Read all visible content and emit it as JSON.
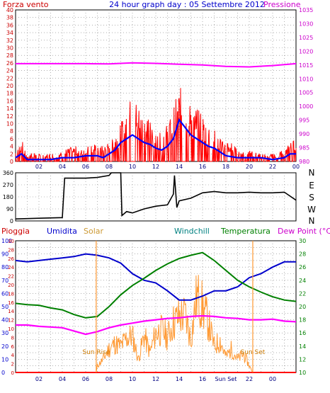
{
  "header": {
    "left_label": "Forza vento",
    "title": "24 hour graph day : 05 Settembre 2012",
    "right_label": "Pressione"
  },
  "bottom_header": {
    "pioggia": "Pioggia",
    "umidita": "Umidita",
    "solar": "Solar",
    "windchill": "Windchill",
    "temperatura": "Temperatura",
    "dewpoint": "Dew Point (°C)"
  },
  "colors": {
    "wind": "#ff0000",
    "wind_avg": "#0000ff",
    "pressure": "#ff00ff",
    "direction": "#000000",
    "humidity": "#0000cc",
    "temperature": "#008000",
    "dewpoint": "#ff00ff",
    "solar": "#ff9933",
    "rain": "#ff0000",
    "windchill": "#0000ff",
    "grid": "#808080",
    "axis_left_top": "#cc0000",
    "axis_right_top": "#cc00cc",
    "axis_left_bottom": "#0000cc",
    "axis_left2_bottom": "#cc0000",
    "axis_right_bottom": "#008000"
  },
  "x_ticks": [
    "02",
    "04",
    "06",
    "08",
    "10",
    "12",
    "14",
    "16",
    "18",
    "20",
    "22",
    "00"
  ],
  "bottom_x_ticks": [
    "02",
    "04",
    "06",
    "08",
    "10",
    "12",
    "14",
    "16",
    "Sun Set",
    "22",
    "00"
  ],
  "chart_data": [
    {
      "type": "line",
      "name": "wind",
      "y_left_ticks": [
        "0",
        "2",
        "4",
        "6",
        "8",
        "10",
        "12",
        "14",
        "16",
        "18",
        "20",
        "22",
        "24",
        "26",
        "28",
        "30",
        "32",
        "34",
        "36",
        "38",
        "40"
      ],
      "y_right_ticks": [
        "980",
        "985",
        "990",
        "995",
        "1000",
        "1005",
        "1010",
        "1015",
        "1020",
        "1025",
        "1030",
        "1035"
      ],
      "ylim_left": [
        0,
        40
      ],
      "ylim_right": [
        980,
        1035
      ],
      "xlim": [
        0,
        24
      ],
      "wind_gust_envelope": [
        [
          0,
          3
        ],
        [
          0.5,
          6
        ],
        [
          1,
          2
        ],
        [
          1.5,
          3
        ],
        [
          2,
          2
        ],
        [
          3,
          2
        ],
        [
          4,
          3
        ],
        [
          5,
          4
        ],
        [
          6,
          4
        ],
        [
          7,
          5
        ],
        [
          7.5,
          4
        ],
        [
          8,
          6
        ],
        [
          8.5,
          7
        ],
        [
          9,
          10
        ],
        [
          9.5,
          14
        ],
        [
          10,
          18
        ],
        [
          10.5,
          15
        ],
        [
          11,
          12
        ],
        [
          11.5,
          13
        ],
        [
          12,
          9
        ],
        [
          12.5,
          8
        ],
        [
          13,
          10
        ],
        [
          13.5,
          14
        ],
        [
          14,
          20
        ],
        [
          14.5,
          18
        ],
        [
          15,
          16
        ],
        [
          15.5,
          14
        ],
        [
          16,
          13
        ],
        [
          16.5,
          10
        ],
        [
          17,
          9
        ],
        [
          17.5,
          7
        ],
        [
          18,
          6
        ],
        [
          18.5,
          5
        ],
        [
          19,
          3
        ],
        [
          20,
          3
        ],
        [
          21,
          2
        ],
        [
          22,
          2
        ],
        [
          23,
          3
        ],
        [
          23.5,
          5
        ],
        [
          24,
          7
        ]
      ],
      "wind_avg": [
        [
          0,
          1
        ],
        [
          0.5,
          2
        ],
        [
          1,
          0.5
        ],
        [
          2,
          0.5
        ],
        [
          3,
          0.5
        ],
        [
          4,
          1
        ],
        [
          5,
          1
        ],
        [
          6,
          1.5
        ],
        [
          7,
          1.5
        ],
        [
          7.5,
          1
        ],
        [
          8,
          2
        ],
        [
          8.5,
          3
        ],
        [
          9,
          5
        ],
        [
          9.5,
          6
        ],
        [
          10,
          7
        ],
        [
          10.5,
          6
        ],
        [
          11,
          5
        ],
        [
          11.5,
          4.5
        ],
        [
          12,
          3.5
        ],
        [
          12.5,
          3
        ],
        [
          13,
          4
        ],
        [
          13.5,
          6
        ],
        [
          14,
          11
        ],
        [
          14.5,
          9
        ],
        [
          15,
          7
        ],
        [
          15.5,
          6
        ],
        [
          16,
          5
        ],
        [
          16.5,
          4
        ],
        [
          17,
          3.5
        ],
        [
          17.5,
          2.5
        ],
        [
          18,
          1.5
        ],
        [
          19,
          1
        ],
        [
          20,
          1
        ],
        [
          21,
          1
        ],
        [
          22,
          0.5
        ],
        [
          23,
          1
        ],
        [
          23.5,
          2
        ],
        [
          24,
          2
        ]
      ],
      "pressure": [
        [
          0,
          1015.5
        ],
        [
          2,
          1015.5
        ],
        [
          4,
          1015.5
        ],
        [
          6,
          1015.5
        ],
        [
          8,
          1015.4
        ],
        [
          10,
          1015.8
        ],
        [
          12,
          1015.6
        ],
        [
          14,
          1015.3
        ],
        [
          16,
          1015.0
        ],
        [
          18,
          1014.5
        ],
        [
          20,
          1014.3
        ],
        [
          22,
          1014.8
        ],
        [
          24,
          1015.5
        ]
      ]
    },
    {
      "type": "line",
      "name": "direction",
      "y_ticks": [
        "0",
        "90",
        "180",
        "270",
        "360"
      ],
      "compass": [
        "N",
        "W",
        "S",
        "E",
        "N"
      ],
      "ylim": [
        0,
        360
      ],
      "xlim": [
        0,
        24
      ],
      "values": [
        [
          0,
          15
        ],
        [
          2,
          20
        ],
        [
          4,
          25
        ],
        [
          4.2,
          320
        ],
        [
          5,
          320
        ],
        [
          6,
          320
        ],
        [
          7,
          325
        ],
        [
          8,
          340
        ],
        [
          8.2,
          360
        ],
        [
          9,
          360
        ],
        [
          9.1,
          40
        ],
        [
          9.5,
          70
        ],
        [
          10,
          60
        ],
        [
          11,
          90
        ],
        [
          12,
          110
        ],
        [
          13,
          120
        ],
        [
          13.5,
          200
        ],
        [
          13.6,
          340
        ],
        [
          13.8,
          100
        ],
        [
          14,
          150
        ],
        [
          15,
          170
        ],
        [
          16,
          210
        ],
        [
          17,
          220
        ],
        [
          18,
          210
        ],
        [
          19,
          210
        ],
        [
          20,
          215
        ],
        [
          21,
          210
        ],
        [
          22,
          210
        ],
        [
          23,
          215
        ],
        [
          24,
          155
        ]
      ]
    },
    {
      "type": "line",
      "name": "temperature",
      "y_left_ticks": [
        "0",
        "10",
        "20",
        "30",
        "40",
        "50",
        "60",
        "70",
        "80",
        "90",
        "100"
      ],
      "y_left2_ticks": [
        "0",
        "2",
        "4",
        "6",
        "8",
        "10",
        "12",
        "14",
        "16",
        "18",
        "20",
        "22",
        "24",
        "26",
        "28",
        "30"
      ],
      "y_right_ticks": [
        "10",
        "12",
        "14",
        "16",
        "18",
        "20",
        "22",
        "24",
        "26",
        "28",
        "30"
      ],
      "ylim_humidity": [
        0,
        100
      ],
      "ylim_temp": [
        10,
        30
      ],
      "xlim": [
        0,
        24
      ],
      "humidity": [
        [
          0,
          85
        ],
        [
          1,
          84
        ],
        [
          2,
          85
        ],
        [
          3,
          86
        ],
        [
          4,
          87
        ],
        [
          5,
          88
        ],
        [
          6,
          90
        ],
        [
          7,
          89
        ],
        [
          8,
          87
        ],
        [
          9,
          83
        ],
        [
          10,
          75
        ],
        [
          11,
          70
        ],
        [
          12,
          68
        ],
        [
          13,
          62
        ],
        [
          14,
          55
        ],
        [
          15,
          55
        ],
        [
          16,
          58
        ],
        [
          17,
          62
        ],
        [
          18,
          62
        ],
        [
          19,
          65
        ],
        [
          20,
          72
        ],
        [
          21,
          75
        ],
        [
          22,
          80
        ],
        [
          23,
          84
        ],
        [
          24,
          84
        ]
      ],
      "temperature": [
        [
          0,
          20.5
        ],
        [
          1,
          20.3
        ],
        [
          2,
          20.2
        ],
        [
          3,
          19.8
        ],
        [
          4,
          19.5
        ],
        [
          5,
          18.8
        ],
        [
          6,
          18.3
        ],
        [
          7,
          18.5
        ],
        [
          8,
          20.0
        ],
        [
          9,
          21.8
        ],
        [
          10,
          23.2
        ],
        [
          11,
          24.3
        ],
        [
          12,
          25.5
        ],
        [
          13,
          26.5
        ],
        [
          14,
          27.3
        ],
        [
          15,
          27.8
        ],
        [
          16,
          28.2
        ],
        [
          17,
          27.0
        ],
        [
          18,
          25.5
        ],
        [
          19,
          24.0
        ],
        [
          20,
          23.0
        ],
        [
          21,
          22.2
        ],
        [
          22,
          21.5
        ],
        [
          23,
          21.0
        ],
        [
          24,
          20.8
        ]
      ],
      "dewpoint": [
        [
          0,
          17.2
        ],
        [
          1,
          17.2
        ],
        [
          2,
          17.0
        ],
        [
          3,
          16.9
        ],
        [
          4,
          16.8
        ],
        [
          5,
          16.3
        ],
        [
          6,
          15.8
        ],
        [
          7,
          16.2
        ],
        [
          8,
          16.8
        ],
        [
          9,
          17.2
        ],
        [
          10,
          17.5
        ],
        [
          11,
          17.8
        ],
        [
          12,
          18.0
        ],
        [
          13,
          18.2
        ],
        [
          14,
          18.3
        ],
        [
          15,
          18.5
        ],
        [
          16,
          18.6
        ],
        [
          17,
          18.5
        ],
        [
          18,
          18.3
        ],
        [
          19,
          18.2
        ],
        [
          20,
          18.0
        ],
        [
          21,
          18.0
        ],
        [
          22,
          18.1
        ],
        [
          23,
          17.8
        ],
        [
          24,
          17.7
        ]
      ],
      "solar": [
        [
          0,
          0
        ],
        [
          6.9,
          0
        ],
        [
          7,
          5
        ],
        [
          7.5,
          10
        ],
        [
          8,
          18
        ],
        [
          8.5,
          22
        ],
        [
          9,
          20
        ],
        [
          9.5,
          26
        ],
        [
          10,
          28
        ],
        [
          10.5,
          10
        ],
        [
          11,
          28
        ],
        [
          11.5,
          15
        ],
        [
          12,
          30
        ],
        [
          12.5,
          32
        ],
        [
          13,
          27
        ],
        [
          13.5,
          38
        ],
        [
          14,
          42
        ],
        [
          14.5,
          44
        ],
        [
          15,
          25
        ],
        [
          15.5,
          58
        ],
        [
          16,
          50
        ],
        [
          16.5,
          38
        ],
        [
          17,
          20
        ],
        [
          17.5,
          24
        ],
        [
          18,
          12
        ],
        [
          18.5,
          18
        ],
        [
          19,
          10
        ],
        [
          19.5,
          14
        ],
        [
          20,
          5
        ],
        [
          20.3,
          0
        ],
        [
          24,
          0
        ]
      ],
      "rain": [
        [
          0,
          0
        ],
        [
          24,
          0
        ]
      ],
      "annotations": [
        {
          "label": "Sun Rise",
          "x": 6.9
        },
        {
          "label": "Sun Set",
          "x": 20.3
        }
      ]
    }
  ]
}
